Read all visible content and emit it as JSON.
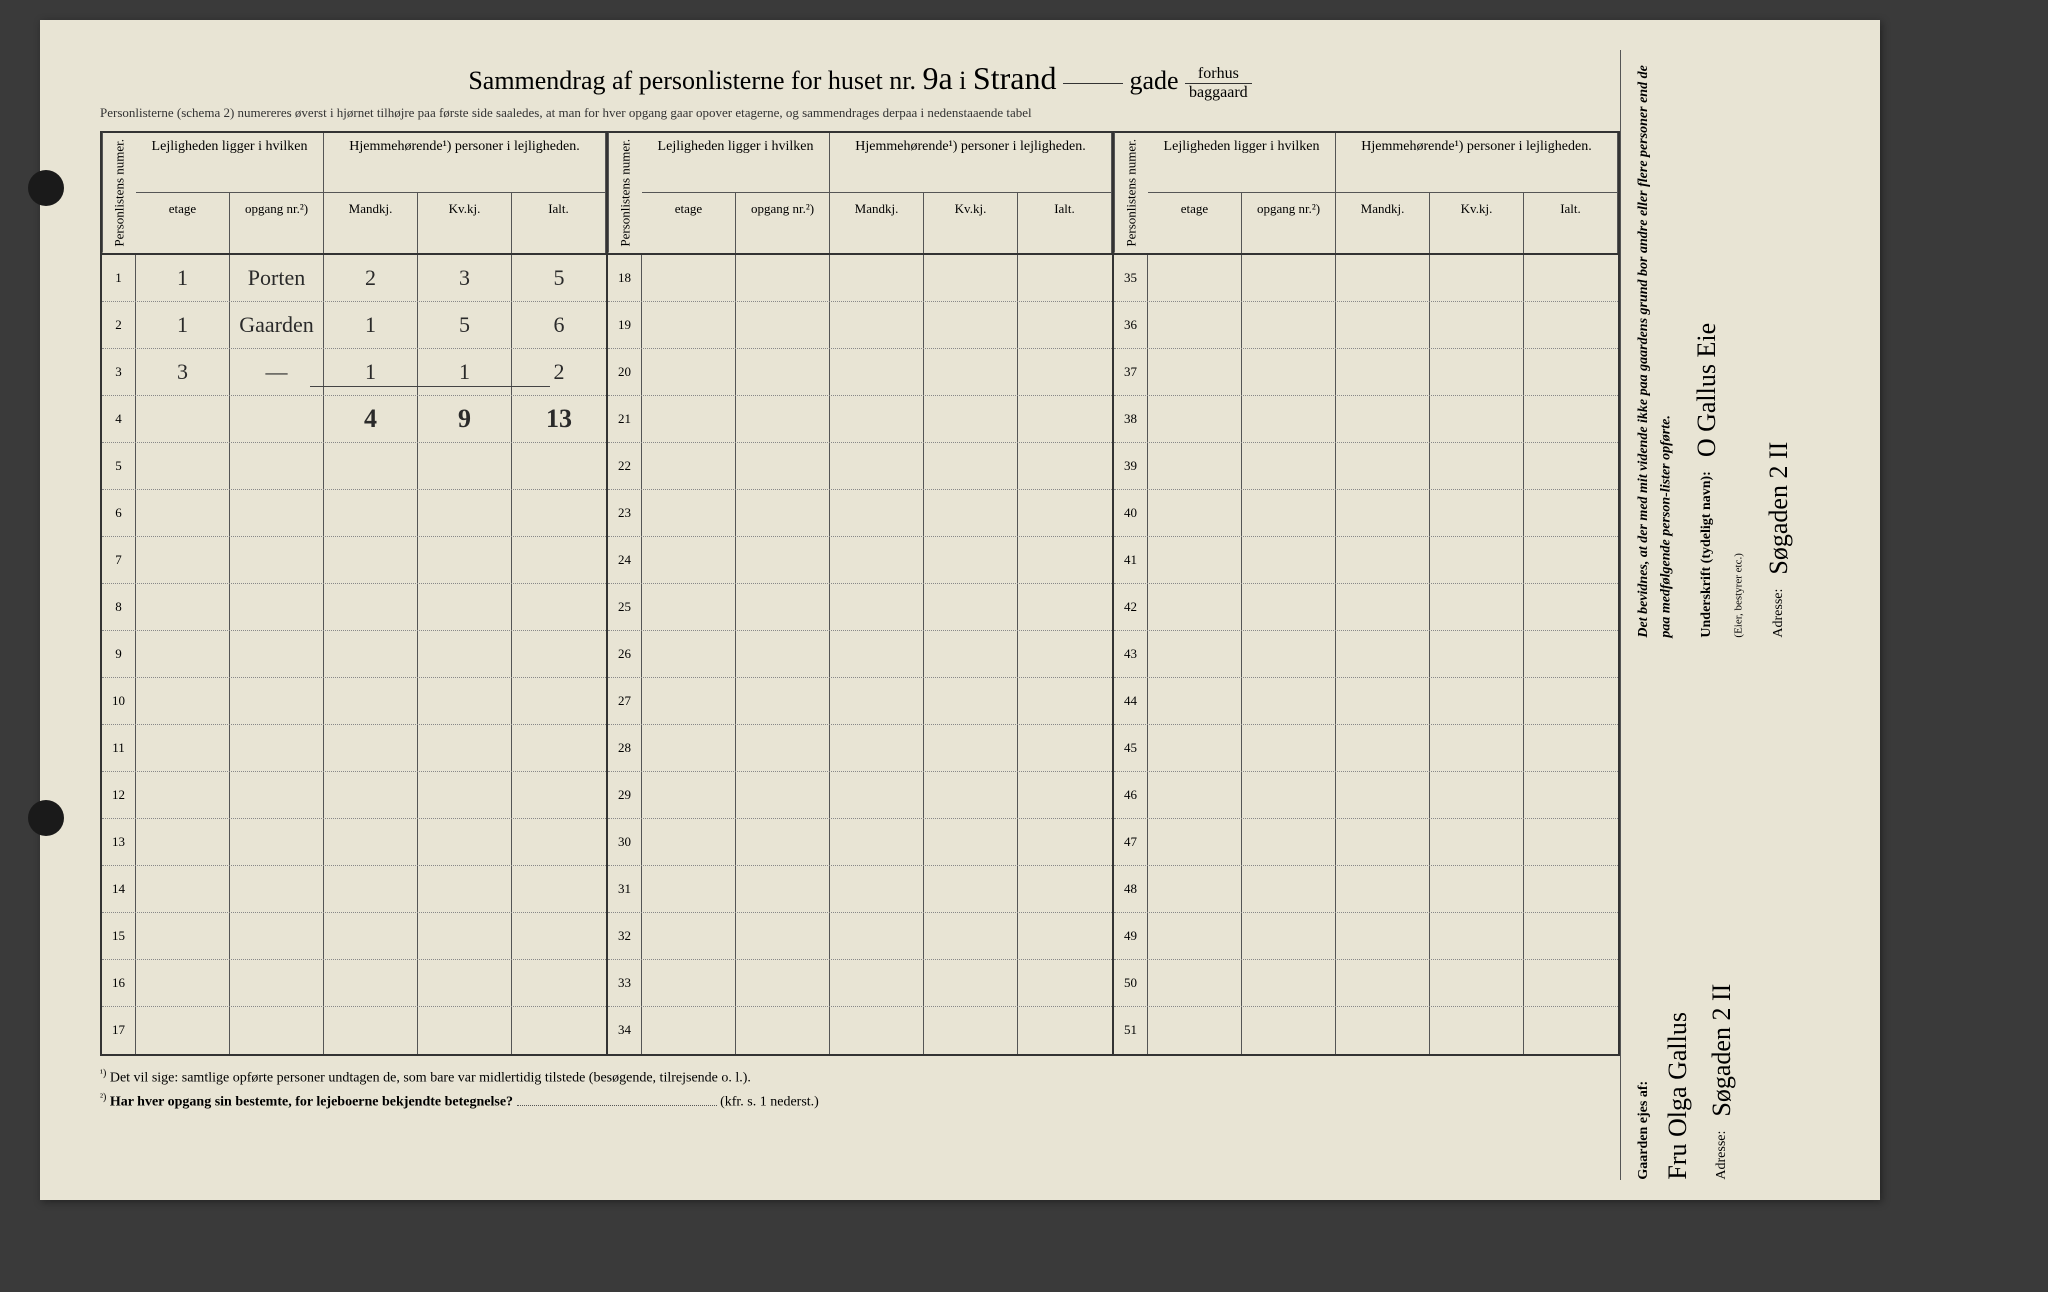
{
  "header": {
    "pre": "Sammendrag af personlisterne for huset nr.",
    "house_no": "9a",
    "mid_i": "i",
    "street": "Strand",
    "gade": "gade",
    "fraction_top": "forhus",
    "fraction_bot": "baggaard"
  },
  "subheader": "Personlisterne (schema 2) numereres øverst i hjørnet tilhøjre paa første side saaledes, at man for hver opgang gaar opover etagerne, og sammendrages derpaa i nedenstaaende tabel",
  "colhead": {
    "personlistens": "Personlistens numer.",
    "leiligheden": "Lejligheden ligger i hvilken",
    "hjemme": "Hjemmehørende¹) personer i lejligheden.",
    "etage": "etage",
    "opgang": "opgang nr.²)",
    "mandkj": "Mandkj.",
    "kvkj": "Kv.kj.",
    "ialt": "Ialt."
  },
  "blocks": [
    {
      "start": 1,
      "rows": [
        {
          "n": "1",
          "etage": "1",
          "opgang": "Porten",
          "m": "2",
          "k": "3",
          "i": "5"
        },
        {
          "n": "2",
          "etage": "1",
          "opgang": "Gaarden",
          "m": "1",
          "k": "5",
          "i": "6"
        },
        {
          "n": "3",
          "etage": "3",
          "opgang": "—",
          "m": "1",
          "k": "1",
          "i": "2"
        },
        {
          "n": "4",
          "etage": "",
          "opgang": "",
          "m": "4",
          "k": "9",
          "i": "13",
          "sum": true
        },
        {
          "n": "5"
        },
        {
          "n": "6"
        },
        {
          "n": "7"
        },
        {
          "n": "8"
        },
        {
          "n": "9"
        },
        {
          "n": "10"
        },
        {
          "n": "11"
        },
        {
          "n": "12"
        },
        {
          "n": "13"
        },
        {
          "n": "14"
        },
        {
          "n": "15"
        },
        {
          "n": "16"
        },
        {
          "n": "17"
        }
      ]
    },
    {
      "start": 18,
      "rows": [
        {
          "n": "18"
        },
        {
          "n": "19"
        },
        {
          "n": "20"
        },
        {
          "n": "21"
        },
        {
          "n": "22"
        },
        {
          "n": "23"
        },
        {
          "n": "24"
        },
        {
          "n": "25"
        },
        {
          "n": "26"
        },
        {
          "n": "27"
        },
        {
          "n": "28"
        },
        {
          "n": "29"
        },
        {
          "n": "30"
        },
        {
          "n": "31"
        },
        {
          "n": "32"
        },
        {
          "n": "33"
        },
        {
          "n": "34"
        }
      ]
    },
    {
      "start": 35,
      "rows": [
        {
          "n": "35"
        },
        {
          "n": "36"
        },
        {
          "n": "37"
        },
        {
          "n": "38"
        },
        {
          "n": "39"
        },
        {
          "n": "40"
        },
        {
          "n": "41"
        },
        {
          "n": "42"
        },
        {
          "n": "43"
        },
        {
          "n": "44"
        },
        {
          "n": "45"
        },
        {
          "n": "46"
        },
        {
          "n": "47"
        },
        {
          "n": "48"
        },
        {
          "n": "49"
        },
        {
          "n": "50"
        },
        {
          "n": "51"
        }
      ]
    }
  ],
  "footnotes": {
    "f1_sup": "¹)",
    "f1": "Det vil sige: samtlige opførte personer undtagen de, som bare var midlertidig tilstede (besøgende, tilrejsende o. l.).",
    "f2_sup": "²)",
    "f2": "Har hver opgang sin bestemte, for lejeboerne bekjendte betegnelse?",
    "f2_tail": "(kfr. s. 1 nederst.)"
  },
  "side": {
    "bevidnes": "Det bevidnes, at der med mit vidende ikke paa gaardens grund bor andre eller flere personer end de paa medfølgende person-lister opførte.",
    "underskrift_label": "Underskrift (tydeligt navn):",
    "underskrift_value": "O Gallus Eie",
    "underskrift_sub": "(Eier, bestyrer etc.)",
    "adresse_label": "Adresse:",
    "adresse_value": "Søgaden 2 II",
    "gaarden_label": "Gaarden ejes af:",
    "gaarden_value": "Fru Olga Gallus",
    "owner_adresse_label": "Adresse:",
    "owner_adresse_value": "Søgaden 2 II"
  },
  "colors": {
    "page_bg": "#e8e4d4",
    "outer_bg": "#3a3a3a",
    "ink": "#2a2a2a",
    "rule": "#333333"
  }
}
